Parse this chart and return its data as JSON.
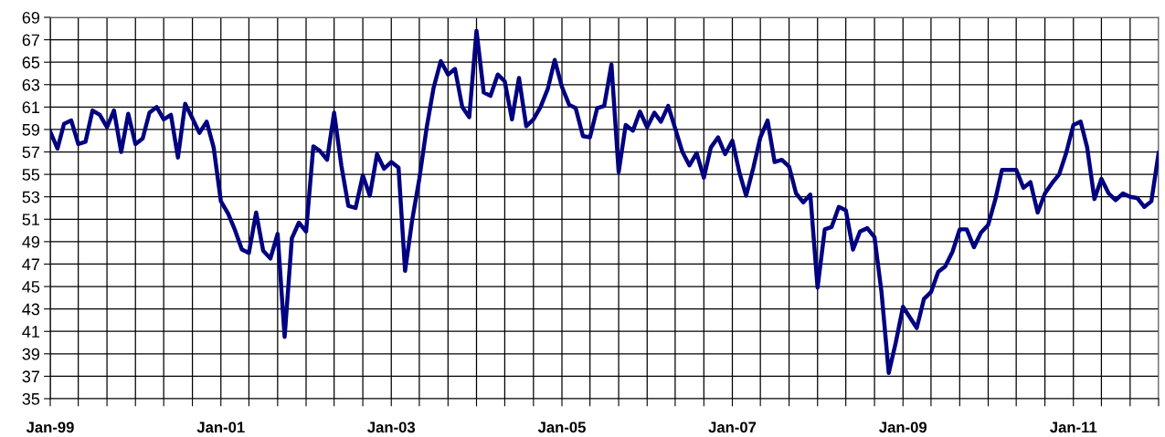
{
  "chart_data": {
    "type": "line",
    "x": [
      "1999-01",
      "1999-02",
      "1999-03",
      "1999-04",
      "1999-05",
      "1999-06",
      "1999-07",
      "1999-08",
      "1999-09",
      "1999-10",
      "1999-11",
      "1999-12",
      "2000-01",
      "2000-02",
      "2000-03",
      "2000-04",
      "2000-05",
      "2000-06",
      "2000-07",
      "2000-08",
      "2000-09",
      "2000-10",
      "2000-11",
      "2000-12",
      "2001-01",
      "2001-02",
      "2001-03",
      "2001-04",
      "2001-05",
      "2001-06",
      "2001-07",
      "2001-08",
      "2001-09",
      "2001-10",
      "2001-11",
      "2001-12",
      "2002-01",
      "2002-02",
      "2002-03",
      "2002-04",
      "2002-05",
      "2002-06",
      "2002-07",
      "2002-08",
      "2002-09",
      "2002-10",
      "2002-11",
      "2002-12",
      "2003-01",
      "2003-02",
      "2003-03",
      "2003-04",
      "2003-05",
      "2003-06",
      "2003-07",
      "2003-08",
      "2003-09",
      "2003-10",
      "2003-11",
      "2003-12",
      "2004-01",
      "2004-02",
      "2004-03",
      "2004-04",
      "2004-05",
      "2004-06",
      "2004-07",
      "2004-08",
      "2004-09",
      "2004-10",
      "2004-11",
      "2004-12",
      "2005-01",
      "2005-02",
      "2005-03",
      "2005-04",
      "2005-05",
      "2005-06",
      "2005-07",
      "2005-08",
      "2005-09",
      "2005-10",
      "2005-11",
      "2005-12",
      "2006-01",
      "2006-02",
      "2006-03",
      "2006-04",
      "2006-05",
      "2006-06",
      "2006-07",
      "2006-08",
      "2006-09",
      "2006-10",
      "2006-11",
      "2006-12",
      "2007-01",
      "2007-02",
      "2007-03",
      "2007-04",
      "2007-05",
      "2007-06",
      "2007-07",
      "2007-08",
      "2007-09",
      "2007-10",
      "2007-11",
      "2007-12",
      "2008-01",
      "2008-02",
      "2008-03",
      "2008-04",
      "2008-05",
      "2008-06",
      "2008-07",
      "2008-08",
      "2008-09",
      "2008-10",
      "2008-11",
      "2008-12",
      "2009-01",
      "2009-02",
      "2009-03",
      "2009-04",
      "2009-05",
      "2009-06",
      "2009-07",
      "2009-08",
      "2009-09",
      "2009-10",
      "2009-11",
      "2009-12",
      "2010-01",
      "2010-02",
      "2010-03",
      "2010-04",
      "2010-05",
      "2010-06",
      "2010-07",
      "2010-08",
      "2010-09",
      "2010-10",
      "2010-11",
      "2010-12",
      "2011-01",
      "2011-02",
      "2011-03",
      "2011-04",
      "2011-05",
      "2011-06",
      "2011-07",
      "2011-08",
      "2011-09",
      "2011-10",
      "2011-11",
      "2011-12",
      "2012-01"
    ],
    "series": [
      {
        "color": "#000080",
        "values": [
          58.8,
          57.3,
          59.5,
          59.8,
          57.7,
          57.9,
          60.7,
          60.3,
          59.2,
          60.7,
          57.0,
          60.4,
          57.7,
          58.2,
          60.5,
          61.0,
          59.9,
          60.3,
          56.5,
          61.3,
          60.0,
          58.7,
          59.7,
          57.4,
          52.6,
          51.5,
          50.1,
          48.3,
          48.0,
          51.6,
          48.2,
          47.5,
          49.7,
          40.5,
          49.3,
          50.7,
          49.9,
          57.5,
          57.1,
          56.3,
          60.5,
          55.8,
          52.2,
          52.0,
          54.9,
          53.1,
          56.8,
          55.5,
          56.1,
          55.6,
          46.4,
          51.0,
          54.6,
          59.1,
          62.7,
          65.1,
          63.9,
          64.4,
          61.0,
          60.1,
          67.8,
          62.3,
          62.0,
          63.9,
          63.3,
          59.9,
          63.6,
          59.3,
          59.9,
          61.0,
          62.6,
          65.2,
          62.8,
          61.2,
          60.9,
          58.4,
          58.3,
          60.9,
          61.1,
          64.8,
          55.2,
          59.4,
          58.9,
          60.6,
          59.2,
          60.5,
          59.7,
          61.1,
          59.1,
          57.0,
          55.8,
          56.9,
          54.7,
          57.4,
          58.3,
          56.8,
          58.0,
          55.1,
          53.1,
          55.6,
          58.3,
          59.8,
          56.1,
          56.3,
          55.7,
          53.3,
          52.5,
          53.2,
          44.9,
          50.1,
          50.3,
          52.1,
          51.8,
          48.3,
          49.9,
          50.2,
          49.4,
          44.5,
          37.3,
          40.0,
          43.2,
          42.2,
          41.3,
          43.9,
          44.5,
          46.3,
          46.8,
          48.1,
          50.1,
          50.1,
          48.5,
          49.8,
          50.5,
          52.8,
          55.4,
          55.4,
          55.4,
          53.8,
          54.3,
          51.6,
          53.3,
          54.2,
          55.0,
          56.9,
          59.4,
          59.7,
          57.4,
          52.8,
          54.6,
          53.3,
          52.7,
          53.3,
          53.0,
          52.9,
          52.1,
          52.6,
          56.9
        ]
      }
    ],
    "xlim": [
      "1999-01",
      "2012-01"
    ],
    "xticks": [
      {
        "value": "1999-01",
        "label": "Jan-99"
      },
      {
        "value": "1999-05",
        "label": null
      },
      {
        "value": "1999-09",
        "label": null
      },
      {
        "value": "2000-01",
        "label": null
      },
      {
        "value": "2000-05",
        "label": null
      },
      {
        "value": "2000-09",
        "label": null
      },
      {
        "value": "2001-01",
        "label": "Jan-01"
      },
      {
        "value": "2001-05",
        "label": null
      },
      {
        "value": "2001-09",
        "label": null
      },
      {
        "value": "2002-01",
        "label": null
      },
      {
        "value": "2002-05",
        "label": null
      },
      {
        "value": "2002-09",
        "label": null
      },
      {
        "value": "2003-01",
        "label": "Jan-03"
      },
      {
        "value": "2003-05",
        "label": null
      },
      {
        "value": "2003-09",
        "label": null
      },
      {
        "value": "2004-01",
        "label": null
      },
      {
        "value": "2004-05",
        "label": null
      },
      {
        "value": "2004-09",
        "label": null
      },
      {
        "value": "2005-01",
        "label": "Jan-05"
      },
      {
        "value": "2005-05",
        "label": null
      },
      {
        "value": "2005-09",
        "label": null
      },
      {
        "value": "2006-01",
        "label": null
      },
      {
        "value": "2006-05",
        "label": null
      },
      {
        "value": "2006-09",
        "label": null
      },
      {
        "value": "2007-01",
        "label": "Jan-07"
      },
      {
        "value": "2007-05",
        "label": null
      },
      {
        "value": "2007-09",
        "label": null
      },
      {
        "value": "2008-01",
        "label": null
      },
      {
        "value": "2008-05",
        "label": null
      },
      {
        "value": "2008-09",
        "label": null
      },
      {
        "value": "2009-01",
        "label": "Jan-09"
      },
      {
        "value": "2009-05",
        "label": null
      },
      {
        "value": "2009-09",
        "label": null
      },
      {
        "value": "2010-01",
        "label": null
      },
      {
        "value": "2010-05",
        "label": null
      },
      {
        "value": "2010-09",
        "label": null
      },
      {
        "value": "2011-01",
        "label": "Jan-11"
      },
      {
        "value": "2011-05",
        "label": null
      },
      {
        "value": "2011-09",
        "label": null
      },
      {
        "value": "2012-01",
        "label": null
      }
    ],
    "ylim": [
      35,
      69
    ],
    "yticks": [
      35,
      37,
      39,
      41,
      43,
      45,
      47,
      49,
      51,
      53,
      55,
      57,
      59,
      61,
      63,
      65,
      67,
      69
    ],
    "grid": true,
    "marker": "none",
    "line_style": "solid"
  }
}
